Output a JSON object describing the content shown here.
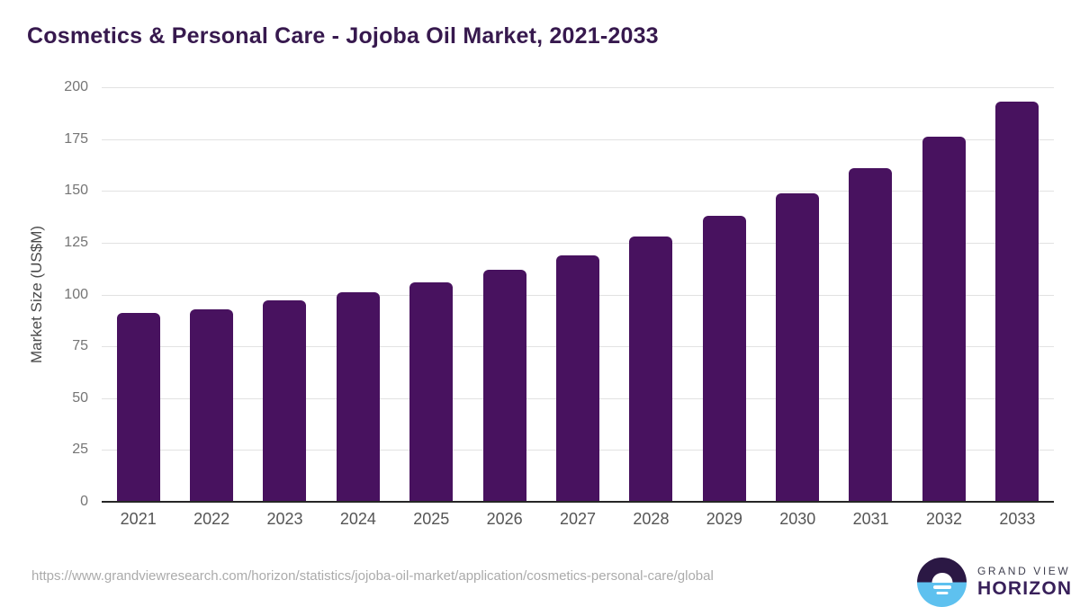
{
  "title": "Cosmetics & Personal Care - Jojoba Oil Market, 2021-2033",
  "footer": {
    "source_url": "https://www.grandviewresearch.com/horizon/statistics/jojoba-oil-market/application/cosmetics-personal-care/global"
  },
  "logo": {
    "top_text": "GRAND VIEW",
    "bottom_text": "HORIZON",
    "icon": "horizon-sun-circle-icon"
  },
  "colors": {
    "bar_color": "#48125f",
    "title_color": "#37194e",
    "axis_color": "#262626",
    "grid_color": "#e2e2e2",
    "tick_color": "#757575",
    "xlabel_color": "#555555",
    "axis_label_color": "#4a4a4a",
    "url_color": "#ababab",
    "logo_dark": "#2b1844",
    "logo_blue": "#5ec1ef",
    "logo_gv_text": "#3f3f4f",
    "logo_hz_text": "#38205a"
  },
  "chart_data": {
    "type": "bar",
    "title": "Cosmetics & Personal Care - Jojoba Oil Market, 2021-2033",
    "categories": [
      "2021",
      "2022",
      "2023",
      "2024",
      "2025",
      "2026",
      "2027",
      "2028",
      "2029",
      "2030",
      "2031",
      "2032",
      "2033"
    ],
    "values": [
      91,
      93,
      97,
      101,
      106,
      112,
      119,
      128,
      138,
      149,
      161,
      176,
      193
    ],
    "xlabel": "",
    "ylabel": "Market Size (US$M)",
    "ylim": [
      0,
      200
    ],
    "yticks": [
      0,
      25,
      50,
      75,
      100,
      125,
      150,
      175,
      200
    ],
    "grid": true,
    "legend": false
  }
}
